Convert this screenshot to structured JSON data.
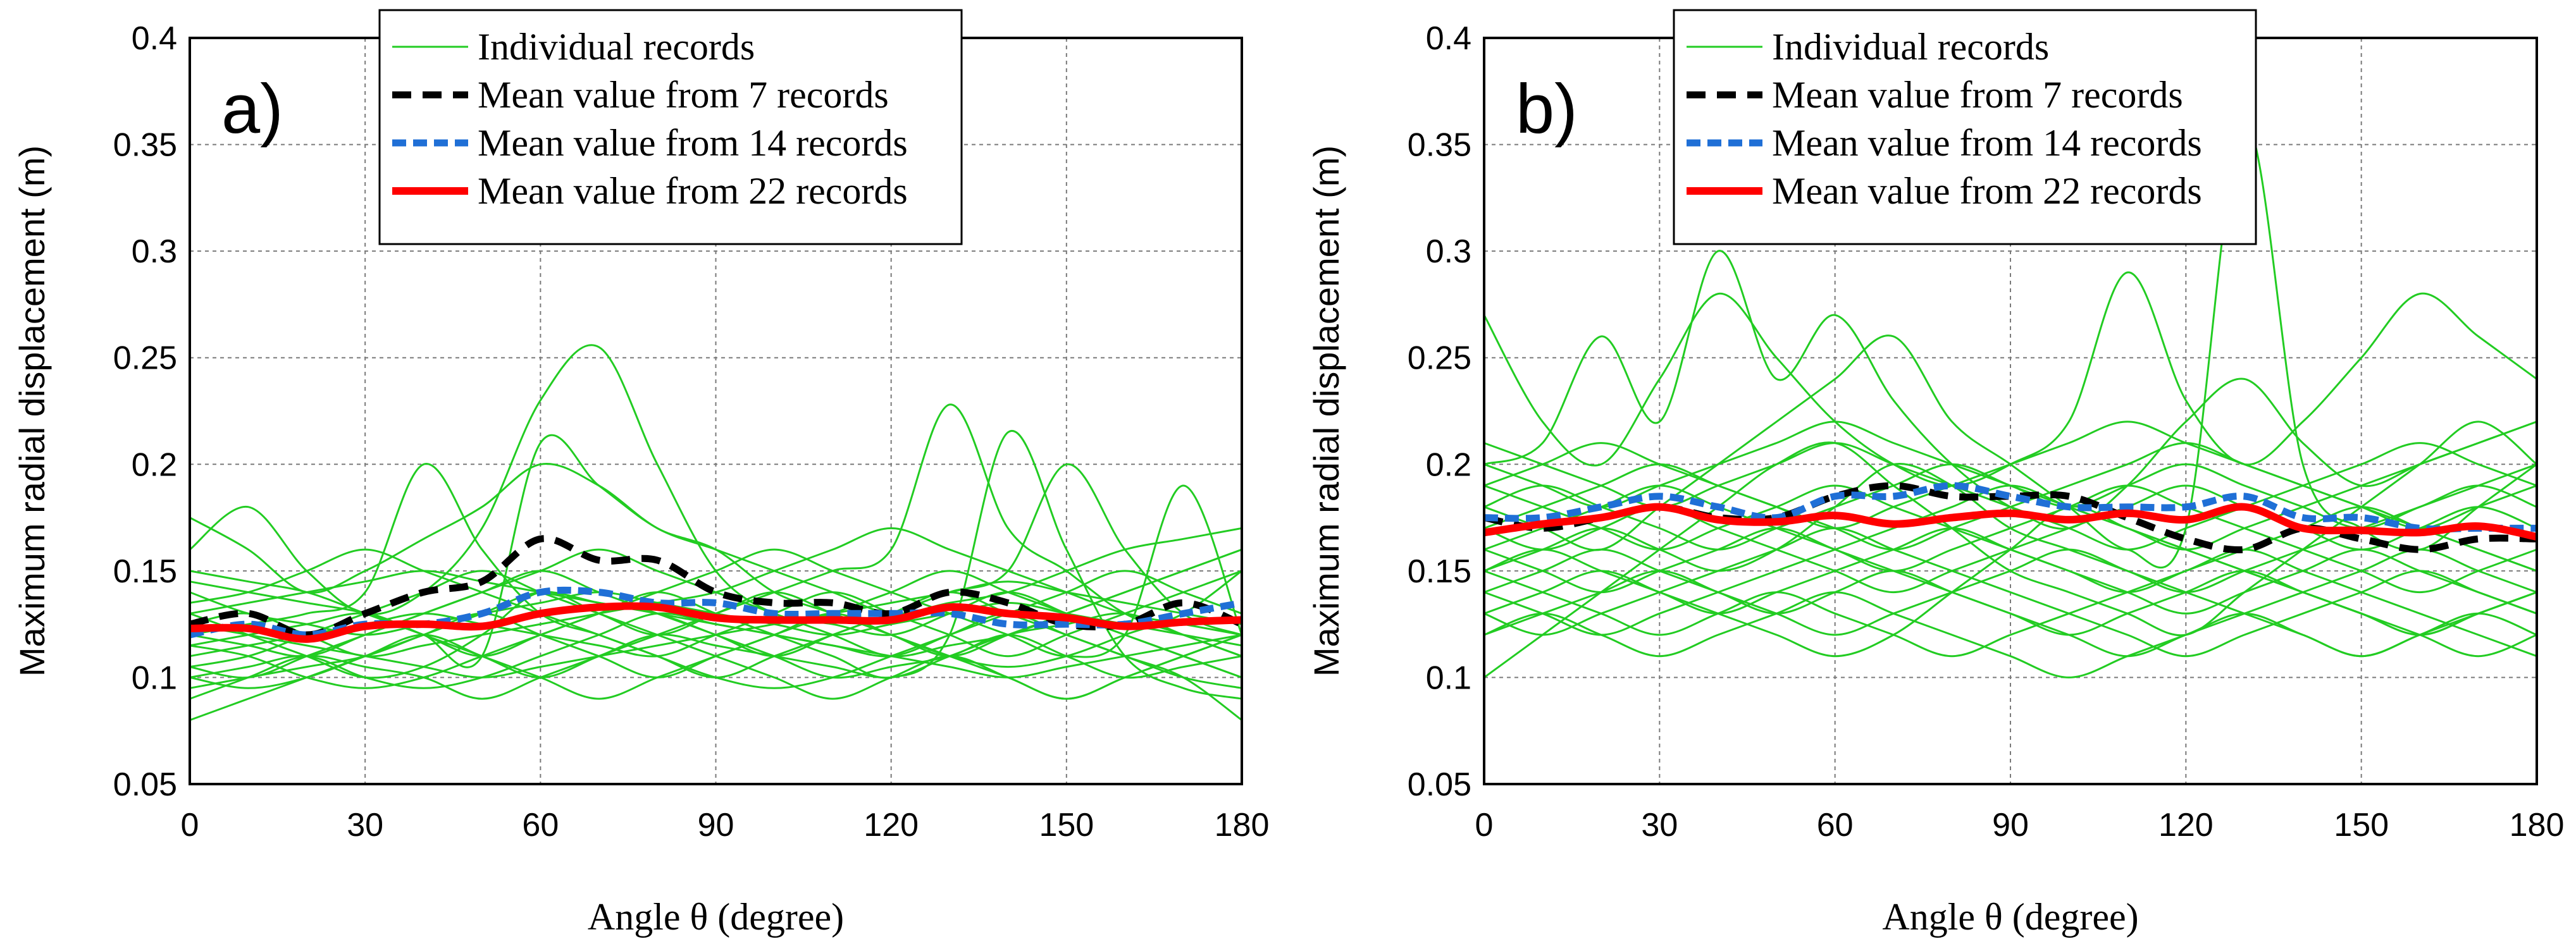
{
  "chart_data": [
    {
      "type": "line",
      "panel_label": "a)",
      "xlabel": "Angle θ (degree)",
      "ylabel": "Maximum radial displacement (m)",
      "xlim": [
        0,
        180
      ],
      "ylim": [
        0.05,
        0.4
      ],
      "xticks": [
        0,
        30,
        60,
        90,
        120,
        150,
        180
      ],
      "yticks": [
        0.05,
        0.1,
        0.15,
        0.2,
        0.25,
        0.3,
        0.35,
        0.4
      ],
      "ytick_labels": [
        "0.05",
        "0.1",
        "0.15",
        "0.2",
        "0.25",
        "0.3",
        "0.35",
        "0.4"
      ],
      "grid": true,
      "legend_position": "top-center",
      "legend": [
        "Individual records",
        "Mean value from 7 records",
        "Mean value from 14 records",
        "Mean value from 22 records"
      ],
      "x": [
        0,
        10,
        20,
        30,
        40,
        50,
        60,
        70,
        80,
        90,
        100,
        110,
        120,
        130,
        140,
        150,
        160,
        170,
        180
      ],
      "individual_records": [
        [
          0.175,
          0.16,
          0.14,
          0.15,
          0.165,
          0.18,
          0.2,
          0.19,
          0.17,
          0.16,
          0.15,
          0.14,
          0.13,
          0.135,
          0.14,
          0.15,
          0.16,
          0.165,
          0.17
        ],
        [
          0.16,
          0.18,
          0.15,
          0.13,
          0.14,
          0.17,
          0.23,
          0.255,
          0.2,
          0.15,
          0.13,
          0.125,
          0.12,
          0.13,
          0.14,
          0.13,
          0.12,
          0.11,
          0.1
        ],
        [
          0.145,
          0.14,
          0.135,
          0.13,
          0.12,
          0.11,
          0.21,
          0.19,
          0.17,
          0.16,
          0.14,
          0.13,
          0.12,
          0.11,
          0.105,
          0.11,
          0.12,
          0.13,
          0.15
        ],
        [
          0.13,
          0.12,
          0.11,
          0.1,
          0.105,
          0.12,
          0.14,
          0.13,
          0.12,
          0.13,
          0.14,
          0.15,
          0.16,
          0.228,
          0.17,
          0.15,
          0.13,
          0.12,
          0.11
        ],
        [
          0.12,
          0.125,
          0.13,
          0.14,
          0.2,
          0.16,
          0.13,
          0.12,
          0.11,
          0.1,
          0.11,
          0.12,
          0.13,
          0.14,
          0.15,
          0.2,
          0.16,
          0.13,
          0.12
        ],
        [
          0.115,
          0.11,
          0.1,
          0.095,
          0.1,
          0.11,
          0.12,
          0.13,
          0.14,
          0.13,
          0.12,
          0.11,
          0.1,
          0.12,
          0.215,
          0.16,
          0.11,
          0.095,
          0.09
        ],
        [
          0.105,
          0.1,
          0.11,
          0.12,
          0.13,
          0.14,
          0.15,
          0.16,
          0.15,
          0.14,
          0.13,
          0.12,
          0.11,
          0.115,
          0.12,
          0.13,
          0.14,
          0.15,
          0.16
        ],
        [
          0.09,
          0.1,
          0.11,
          0.105,
          0.1,
          0.09,
          0.1,
          0.11,
          0.12,
          0.115,
          0.11,
          0.105,
          0.1,
          0.11,
          0.12,
          0.125,
          0.13,
          0.12,
          0.11
        ],
        [
          0.125,
          0.13,
          0.12,
          0.11,
          0.115,
          0.12,
          0.125,
          0.13,
          0.135,
          0.14,
          0.15,
          0.16,
          0.17,
          0.16,
          0.15,
          0.14,
          0.13,
          0.125,
          0.12
        ],
        [
          0.135,
          0.14,
          0.15,
          0.16,
          0.15,
          0.14,
          0.13,
          0.12,
          0.11,
          0.1,
          0.095,
          0.1,
          0.11,
          0.12,
          0.13,
          0.12,
          0.11,
          0.1,
          0.095
        ],
        [
          0.095,
          0.1,
          0.105,
          0.11,
          0.12,
          0.13,
          0.14,
          0.135,
          0.13,
          0.12,
          0.11,
          0.1,
          0.105,
          0.11,
          0.12,
          0.11,
          0.1,
          0.105,
          0.11
        ],
        [
          0.11,
          0.115,
          0.12,
          0.125,
          0.13,
          0.125,
          0.12,
          0.115,
          0.11,
          0.12,
          0.13,
          0.14,
          0.13,
          0.12,
          0.11,
          0.12,
          0.13,
          0.14,
          0.15
        ],
        [
          0.08,
          0.09,
          0.1,
          0.11,
          0.12,
          0.11,
          0.1,
          0.09,
          0.1,
          0.11,
          0.12,
          0.13,
          0.14,
          0.15,
          0.14,
          0.13,
          0.12,
          0.11,
          0.1
        ],
        [
          0.15,
          0.145,
          0.14,
          0.13,
          0.12,
          0.11,
          0.12,
          0.13,
          0.14,
          0.15,
          0.16,
          0.15,
          0.14,
          0.13,
          0.12,
          0.11,
          0.12,
          0.19,
          0.12
        ],
        [
          0.12,
          0.115,
          0.11,
          0.12,
          0.13,
          0.14,
          0.15,
          0.14,
          0.13,
          0.12,
          0.11,
          0.12,
          0.13,
          0.14,
          0.13,
          0.12,
          0.11,
          0.1,
          0.08
        ],
        [
          0.1,
          0.105,
          0.11,
          0.1,
          0.095,
          0.1,
          0.11,
          0.12,
          0.13,
          0.125,
          0.12,
          0.115,
          0.11,
          0.12,
          0.13,
          0.14,
          0.15,
          0.14,
          0.13
        ],
        [
          0.14,
          0.13,
          0.125,
          0.12,
          0.125,
          0.13,
          0.135,
          0.14,
          0.135,
          0.13,
          0.125,
          0.12,
          0.125,
          0.13,
          0.135,
          0.13,
          0.125,
          0.12,
          0.115
        ],
        [
          0.125,
          0.12,
          0.115,
          0.11,
          0.105,
          0.1,
          0.105,
          0.11,
          0.115,
          0.12,
          0.125,
          0.13,
          0.135,
          0.14,
          0.145,
          0.14,
          0.135,
          0.13,
          0.125
        ],
        [
          0.105,
          0.11,
          0.12,
          0.13,
          0.14,
          0.15,
          0.14,
          0.13,
          0.12,
          0.11,
          0.1,
          0.09,
          0.1,
          0.11,
          0.1,
          0.09,
          0.1,
          0.11,
          0.12
        ],
        [
          0.13,
          0.135,
          0.14,
          0.145,
          0.15,
          0.145,
          0.14,
          0.135,
          0.13,
          0.125,
          0.12,
          0.115,
          0.11,
          0.105,
          0.1,
          0.105,
          0.11,
          0.115,
          0.12
        ],
        [
          0.115,
          0.12,
          0.125,
          0.13,
          0.12,
          0.11,
          0.1,
          0.11,
          0.12,
          0.13,
          0.14,
          0.13,
          0.12,
          0.11,
          0.12,
          0.13,
          0.14,
          0.15,
          0.16
        ],
        [
          0.1,
          0.095,
          0.1,
          0.11,
          0.12,
          0.13,
          0.12,
          0.11,
          0.1,
          0.11,
          0.12,
          0.13,
          0.12,
          0.11,
          0.1,
          0.09,
          0.1,
          0.11,
          0.12
        ]
      ],
      "series": [
        {
          "name": "Mean value from 7 records",
          "values": [
            0.125,
            0.13,
            0.12,
            0.13,
            0.14,
            0.145,
            0.165,
            0.155,
            0.155,
            0.14,
            0.135,
            0.135,
            0.13,
            0.14,
            0.135,
            0.125,
            0.125,
            0.135,
            0.125
          ]
        },
        {
          "name": "Mean value from 14 records",
          "values": [
            0.12,
            0.125,
            0.12,
            0.125,
            0.125,
            0.13,
            0.14,
            0.14,
            0.135,
            0.135,
            0.13,
            0.13,
            0.13,
            0.13,
            0.125,
            0.125,
            0.125,
            0.13,
            0.135
          ]
        },
        {
          "name": "Mean value from 22 records",
          "values": [
            0.123,
            0.123,
            0.118,
            0.124,
            0.125,
            0.124,
            0.13,
            0.133,
            0.133,
            0.128,
            0.127,
            0.127,
            0.127,
            0.133,
            0.13,
            0.128,
            0.124,
            0.126,
            0.127
          ]
        }
      ]
    },
    {
      "type": "line",
      "panel_label": "b)",
      "xlabel": "Angle θ (degree)",
      "ylabel": "Maximum radial displacement (m)",
      "xlim": [
        0,
        180
      ],
      "ylim": [
        0.05,
        0.4
      ],
      "xticks": [
        0,
        30,
        60,
        90,
        120,
        150,
        180
      ],
      "yticks": [
        0.05,
        0.1,
        0.15,
        0.2,
        0.25,
        0.3,
        0.35,
        0.4
      ],
      "ytick_labels": [
        "0.05",
        "0.1",
        "0.15",
        "0.2",
        "0.25",
        "0.3",
        "0.35",
        "0.4"
      ],
      "grid": true,
      "legend_position": "top-center",
      "legend": [
        "Individual records",
        "Mean value from 7 records",
        "Mean value from 14 records",
        "Mean value from 22 records"
      ],
      "x": [
        0,
        10,
        20,
        30,
        40,
        50,
        60,
        70,
        80,
        90,
        100,
        110,
        120,
        130,
        140,
        150,
        160,
        170,
        180
      ],
      "individual_records": [
        [
          0.27,
          0.22,
          0.2,
          0.24,
          0.28,
          0.25,
          0.22,
          0.2,
          0.19,
          0.2,
          0.22,
          0.29,
          0.23,
          0.2,
          0.22,
          0.25,
          0.28,
          0.26,
          0.24
        ],
        [
          0.2,
          0.21,
          0.26,
          0.22,
          0.3,
          0.24,
          0.27,
          0.23,
          0.2,
          0.18,
          0.17,
          0.19,
          0.22,
          0.24,
          0.21,
          0.19,
          0.2,
          0.21,
          0.22
        ],
        [
          0.18,
          0.17,
          0.16,
          0.18,
          0.2,
          0.22,
          0.24,
          0.26,
          0.22,
          0.2,
          0.18,
          0.16,
          0.17,
          0.36,
          0.2,
          0.17,
          0.16,
          0.18,
          0.2
        ],
        [
          0.15,
          0.16,
          0.17,
          0.16,
          0.15,
          0.16,
          0.18,
          0.2,
          0.19,
          0.17,
          0.16,
          0.15,
          0.14,
          0.15,
          0.16,
          0.17,
          0.18,
          0.19,
          0.18
        ],
        [
          0.13,
          0.14,
          0.15,
          0.14,
          0.13,
          0.12,
          0.11,
          0.12,
          0.14,
          0.16,
          0.18,
          0.17,
          0.16,
          0.15,
          0.14,
          0.13,
          0.12,
          0.13,
          0.14
        ],
        [
          0.1,
          0.12,
          0.14,
          0.16,
          0.18,
          0.2,
          0.21,
          0.19,
          0.17,
          0.15,
          0.14,
          0.13,
          0.12,
          0.14,
          0.16,
          0.18,
          0.2,
          0.22,
          0.2
        ],
        [
          0.17,
          0.18,
          0.19,
          0.2,
          0.19,
          0.18,
          0.17,
          0.16,
          0.17,
          0.18,
          0.19,
          0.2,
          0.21,
          0.2,
          0.19,
          0.18,
          0.17,
          0.16,
          0.15
        ],
        [
          0.14,
          0.13,
          0.12,
          0.13,
          0.14,
          0.15,
          0.16,
          0.17,
          0.18,
          0.19,
          0.18,
          0.17,
          0.16,
          0.15,
          0.14,
          0.13,
          0.12,
          0.13,
          0.14
        ],
        [
          0.19,
          0.2,
          0.21,
          0.2,
          0.19,
          0.18,
          0.17,
          0.18,
          0.19,
          0.2,
          0.21,
          0.22,
          0.21,
          0.2,
          0.19,
          0.18,
          0.17,
          0.18,
          0.19
        ],
        [
          0.16,
          0.15,
          0.14,
          0.15,
          0.16,
          0.17,
          0.16,
          0.15,
          0.14,
          0.13,
          0.12,
          0.11,
          0.12,
          0.13,
          0.14,
          0.15,
          0.16,
          0.15,
          0.14
        ],
        [
          0.12,
          0.13,
          0.14,
          0.15,
          0.14,
          0.13,
          0.12,
          0.13,
          0.14,
          0.15,
          0.16,
          0.15,
          0.14,
          0.13,
          0.12,
          0.11,
          0.12,
          0.13,
          0.12
        ],
        [
          0.21,
          0.2,
          0.19,
          0.18,
          0.19,
          0.2,
          0.21,
          0.2,
          0.19,
          0.18,
          0.17,
          0.16,
          0.17,
          0.18,
          0.19,
          0.2,
          0.21,
          0.2,
          0.19
        ],
        [
          0.15,
          0.16,
          0.15,
          0.14,
          0.13,
          0.14,
          0.15,
          0.16,
          0.17,
          0.16,
          0.15,
          0.14,
          0.13,
          0.14,
          0.15,
          0.16,
          0.15,
          0.14,
          0.13
        ],
        [
          0.18,
          0.19,
          0.18,
          0.17,
          0.16,
          0.17,
          0.18,
          0.19,
          0.2,
          0.19,
          0.18,
          0.17,
          0.16,
          0.17,
          0.18,
          0.19,
          0.2,
          0.21,
          0.22
        ],
        [
          0.13,
          0.12,
          0.13,
          0.14,
          0.15,
          0.16,
          0.17,
          0.16,
          0.15,
          0.14,
          0.13,
          0.12,
          0.11,
          0.12,
          0.13,
          0.14,
          0.15,
          0.14,
          0.13
        ],
        [
          0.16,
          0.17,
          0.18,
          0.19,
          0.18,
          0.17,
          0.16,
          0.15,
          0.16,
          0.17,
          0.18,
          0.19,
          0.18,
          0.17,
          0.16,
          0.15,
          0.14,
          0.15,
          0.16
        ],
        [
          0.14,
          0.15,
          0.16,
          0.15,
          0.14,
          0.13,
          0.14,
          0.15,
          0.14,
          0.13,
          0.12,
          0.13,
          0.14,
          0.15,
          0.14,
          0.13,
          0.12,
          0.11,
          0.12
        ],
        [
          0.2,
          0.19,
          0.18,
          0.19,
          0.2,
          0.21,
          0.22,
          0.21,
          0.2,
          0.19,
          0.18,
          0.19,
          0.2,
          0.19,
          0.18,
          0.17,
          0.18,
          0.19,
          0.2
        ],
        [
          0.15,
          0.14,
          0.13,
          0.12,
          0.13,
          0.14,
          0.13,
          0.12,
          0.11,
          0.12,
          0.13,
          0.14,
          0.15,
          0.16,
          0.15,
          0.14,
          0.13,
          0.12,
          0.11
        ],
        [
          0.17,
          0.16,
          0.17,
          0.18,
          0.17,
          0.16,
          0.15,
          0.14,
          0.15,
          0.16,
          0.17,
          0.18,
          0.19,
          0.18,
          0.17,
          0.16,
          0.17,
          0.18,
          0.17
        ],
        [
          0.19,
          0.18,
          0.17,
          0.16,
          0.17,
          0.18,
          0.19,
          0.18,
          0.17,
          0.16,
          0.15,
          0.14,
          0.15,
          0.16,
          0.17,
          0.18,
          0.17,
          0.16,
          0.15
        ],
        [
          0.12,
          0.13,
          0.12,
          0.11,
          0.12,
          0.13,
          0.14,
          0.13,
          0.12,
          0.11,
          0.1,
          0.11,
          0.12,
          0.13,
          0.12,
          0.11,
          0.12,
          0.13,
          0.14
        ]
      ],
      "series": [
        {
          "name": "Mean value from 7 records",
          "values": [
            0.175,
            0.17,
            0.175,
            0.18,
            0.175,
            0.175,
            0.185,
            0.19,
            0.185,
            0.185,
            0.185,
            0.175,
            0.165,
            0.16,
            0.17,
            0.165,
            0.16,
            0.165,
            0.165
          ]
        },
        {
          "name": "Mean value from 14 records",
          "values": [
            0.175,
            0.175,
            0.18,
            0.185,
            0.18,
            0.175,
            0.185,
            0.185,
            0.19,
            0.185,
            0.18,
            0.18,
            0.18,
            0.185,
            0.175,
            0.175,
            0.17,
            0.17,
            0.17
          ]
        },
        {
          "name": "Mean value from 22 records",
          "values": [
            0.168,
            0.172,
            0.175,
            0.18,
            0.174,
            0.173,
            0.176,
            0.172,
            0.175,
            0.177,
            0.174,
            0.177,
            0.174,
            0.18,
            0.17,
            0.169,
            0.168,
            0.171,
            0.166
          ]
        }
      ]
    }
  ],
  "colors": {
    "individual": "#22cc22",
    "mean7": "#000000",
    "mean14": "#1f6fd6",
    "mean22": "#ff0000"
  }
}
